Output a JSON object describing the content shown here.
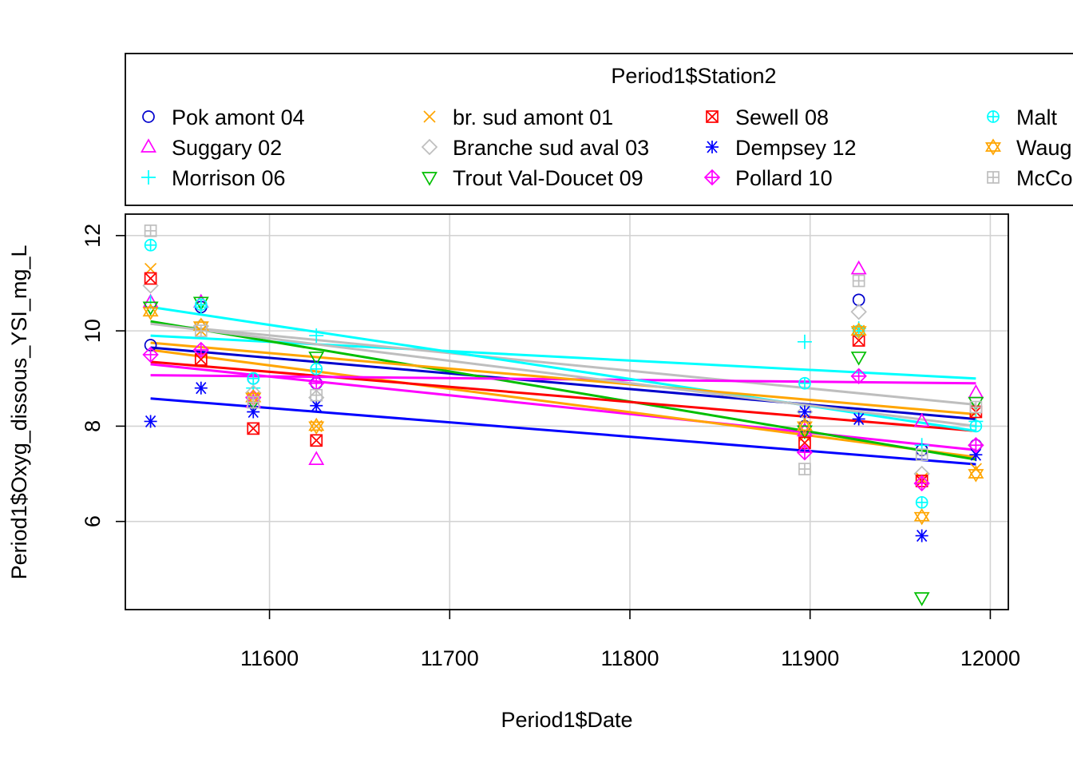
{
  "chart_data": {
    "type": "scatter",
    "xlabel": "Period1$Date",
    "ylabel": "Period1$Oxyg_dissous_YSI_mg_L",
    "xlim": [
      11520,
      12010
    ],
    "ylim": [
      4.15,
      12.45
    ],
    "xticks": [
      11600,
      11700,
      11800,
      11900,
      12000
    ],
    "yticks": [
      6,
      8,
      10,
      12
    ],
    "grid": true,
    "legend": {
      "title": "Period1$Station2",
      "placement": "top"
    },
    "sample_dates": [
      11534,
      11562,
      11591,
      11626,
      11897,
      11927,
      11962,
      11992
    ],
    "series": [
      {
        "name": "Pok amont 04",
        "color": "#0000cd",
        "marker": "circle",
        "values": [
          9.7,
          10.5,
          9.0,
          8.9,
          8.0,
          10.65,
          7.5,
          7.6
        ],
        "fit": [
          9.65,
          8.15
        ]
      },
      {
        "name": "Suggary 02",
        "color": "#ff00ff",
        "marker": "triangle-up",
        "values": [
          10.6,
          10.6,
          8.5,
          7.3,
          7.9,
          11.3,
          8.1,
          8.7
        ],
        "fit": [
          9.3,
          7.5
        ]
      },
      {
        "name": "Morrison 06",
        "color": "#00ffff",
        "marker": "plus",
        "values": [
          10.6,
          10.5,
          8.8,
          9.9,
          9.77,
          10.05,
          7.6,
          8.1
        ],
        "fit": [
          9.9,
          9.0
        ]
      },
      {
        "name": "br. sud amont 01",
        "color": "#ffa500",
        "marker": "cross",
        "values": [
          11.3,
          10.0,
          8.6,
          8.0,
          7.8,
          10.0,
          6.9,
          7.1
        ],
        "fit": [
          9.6,
          7.35
        ]
      },
      {
        "name": "Branche sud aval 03",
        "color": "#bebebe",
        "marker": "diamond",
        "values": [
          10.95,
          10.1,
          8.7,
          8.6,
          8.3,
          10.4,
          7.0,
          7.6
        ],
        "fit": [
          10.15,
          8.45
        ]
      },
      {
        "name": "Trout Val-Doucet 09",
        "color": "#00bf00",
        "marker": "triangle-down",
        "values": [
          10.5,
          10.6,
          8.5,
          9.45,
          7.9,
          9.45,
          4.4,
          8.5
        ],
        "fit": [
          10.2,
          7.3
        ]
      },
      {
        "name": "Sewell 08",
        "color": "#ff0000",
        "marker": "square-x",
        "values": [
          11.1,
          9.4,
          7.95,
          7.7,
          7.65,
          9.8,
          6.85,
          8.3
        ],
        "fit": [
          9.35,
          7.9
        ]
      },
      {
        "name": "Dempsey 12",
        "color": "#0000ff",
        "marker": "asterisk",
        "values": [
          8.1,
          8.8,
          8.3,
          8.43,
          8.3,
          8.15,
          5.7,
          7.4
        ],
        "fit": [
          8.58,
          7.2
        ]
      },
      {
        "name": "Pollard 10",
        "color": "#ff00ff",
        "marker": "diamond-plus",
        "values": [
          9.5,
          9.6,
          8.6,
          8.9,
          7.45,
          9.05,
          6.8,
          7.6
        ],
        "fit": [
          9.07,
          8.9
        ]
      },
      {
        "name": "Malt",
        "color": "#00ffff",
        "marker": "circle-plus",
        "values": [
          11.8,
          10.55,
          9.0,
          9.2,
          8.9,
          10.0,
          6.4,
          8.0
        ],
        "fit": [
          10.5,
          7.9
        ]
      },
      {
        "name": "Waug",
        "color": "#ffa500",
        "marker": "star-of-david",
        "values": [
          10.4,
          10.1,
          8.6,
          8.0,
          8.0,
          10.0,
          6.1,
          7.0
        ],
        "fit": [
          9.75,
          8.25
        ]
      },
      {
        "name": "McCo",
        "color": "#bebebe",
        "marker": "square-plus",
        "values": [
          12.1,
          10.0,
          8.5,
          8.65,
          7.1,
          11.05,
          7.4,
          8.4
        ],
        "fit": [
          10.15,
          8.0
        ]
      }
    ]
  }
}
